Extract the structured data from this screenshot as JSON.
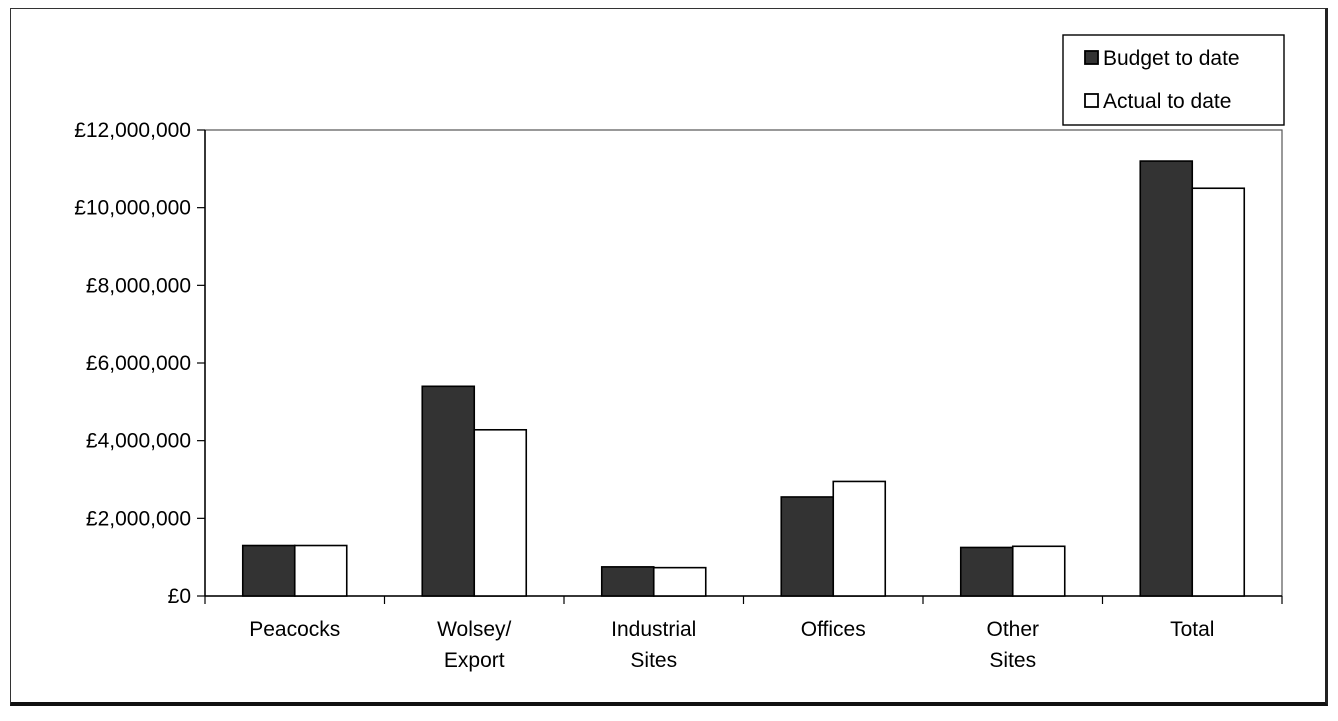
{
  "chart_data": {
    "type": "bar",
    "categories": [
      [
        "Peacocks"
      ],
      [
        "Wolsey/",
        "Export"
      ],
      [
        "Industrial",
        "Sites"
      ],
      [
        "Offices"
      ],
      [
        "Other",
        "Sites"
      ],
      [
        "Total"
      ]
    ],
    "series": [
      {
        "name": "Budget to date",
        "values": [
          1300000,
          5400000,
          750000,
          2550000,
          1250000,
          11200000
        ],
        "color": "#333333"
      },
      {
        "name": "Actual to date",
        "values": [
          1300000,
          4280000,
          730000,
          2950000,
          1280000,
          10500000
        ],
        "color": "#ffffff"
      }
    ],
    "ylim": [
      0,
      12000000
    ],
    "yticks": [
      "£0",
      "£2,000,000",
      "£4,000,000",
      "£6,000,000",
      "£8,000,000",
      "£10,000,000",
      "£12,000,000"
    ],
    "ytick_values": [
      0,
      2000000,
      4000000,
      6000000,
      8000000,
      10000000,
      12000000
    ],
    "legend_position": "top-right",
    "grid": false,
    "title": "",
    "xlabel": "",
    "ylabel": ""
  }
}
